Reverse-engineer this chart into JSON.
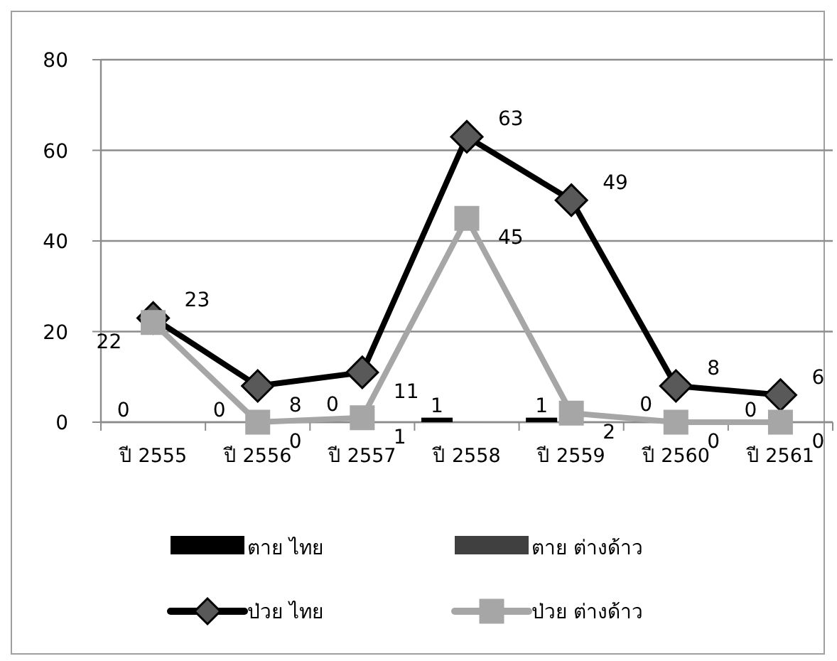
{
  "chart_data": {
    "type": "bar",
    "categories": [
      "ปี 2555",
      "ปี 2556",
      "ปี 2557",
      "ปี 2558",
      "ปี 2559",
      "ปี 2560",
      "ปี 2561"
    ],
    "series": [
      {
        "name": "ตาย ไทย",
        "color": "#000000",
        "values": [
          0,
          0,
          0,
          1,
          1,
          0,
          0
        ],
        "value_labels": [
          "0",
          "0",
          "0",
          "1",
          "1",
          "0",
          "0"
        ]
      },
      {
        "name": "ตาย ต่างด้าว",
        "color": "#404040",
        "values": [
          0,
          0,
          0,
          0,
          0,
          0,
          0
        ]
      },
      {
        "name": "ป่วย ไทย",
        "type": "line",
        "color": "#000000",
        "marker": "diamond",
        "values": [
          23,
          8,
          11,
          63,
          49,
          8,
          6
        ],
        "value_labels": [
          "23",
          "8",
          "11",
          "63",
          "49",
          "8",
          "6"
        ]
      },
      {
        "name": "ป่วย ต่างด้าว",
        "type": "line",
        "color": "#a6a6a6",
        "marker": "square",
        "values": [
          22,
          0,
          1,
          45,
          2,
          0,
          0
        ],
        "value_labels": [
          "22",
          "0",
          "1",
          "45",
          "2",
          "0",
          "0"
        ]
      }
    ],
    "ylim": [
      0,
      80
    ],
    "yticks": [
      0,
      20,
      40,
      60,
      80
    ],
    "grid": "y",
    "legend": "bottom"
  }
}
